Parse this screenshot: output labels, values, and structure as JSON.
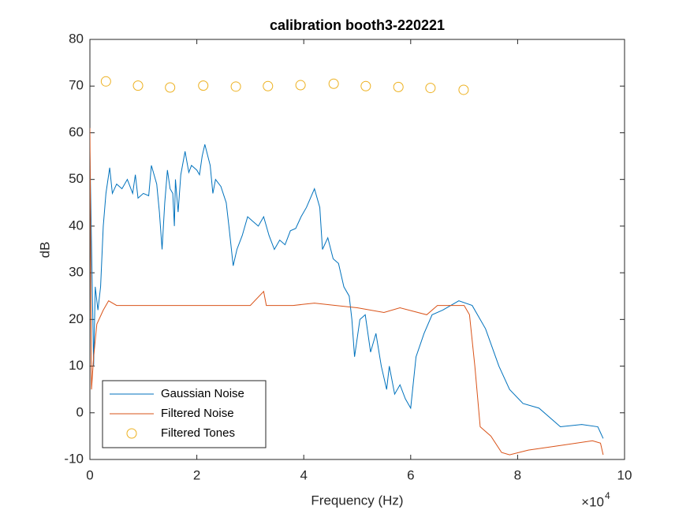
{
  "chart_data": {
    "type": "line",
    "title": "calibration booth3-220221",
    "xlabel": "Frequency (Hz)",
    "ylabel": "dB",
    "x_multiplier_base": "×10",
    "x_multiplier_exp": "4",
    "xlim": [
      0,
      100000
    ],
    "ylim": [
      -10,
      80
    ],
    "xticks": [
      {
        "value": 0,
        "label": "0"
      },
      {
        "value": 20000,
        "label": "2"
      },
      {
        "value": 40000,
        "label": "4"
      },
      {
        "value": 60000,
        "label": "6"
      },
      {
        "value": 80000,
        "label": "8"
      },
      {
        "value": 100000,
        "label": "10"
      }
    ],
    "yticks": [
      -10,
      0,
      10,
      20,
      30,
      40,
      50,
      60,
      70,
      80
    ],
    "legend_position": "lower-left",
    "series": [
      {
        "name": "Gaussian Noise",
        "color": "#0072BD",
        "marker": "line",
        "x": [
          0,
          700,
          1000,
          1500,
          2000,
          2500,
          3000,
          3700,
          4200,
          5000,
          6000,
          7000,
          8000,
          8500,
          9000,
          10000,
          11000,
          11500,
          12500,
          13000,
          13500,
          14000,
          14500,
          15000,
          15500,
          15800,
          16000,
          16500,
          17000,
          17800,
          18500,
          19000,
          20000,
          20500,
          21000,
          21500,
          22500,
          23000,
          23500,
          24500,
          25500,
          26000,
          26800,
          27500,
          28500,
          29500,
          30500,
          31500,
          32500,
          33500,
          34500,
          35500,
          36500,
          37500,
          38500,
          39500,
          40500,
          42000,
          43000,
          43500,
          44500,
          45500,
          46500,
          47500,
          48500,
          49000,
          49500,
          50500,
          51500,
          52500,
          53500,
          54500,
          55500,
          56000,
          57000,
          58000,
          59000,
          60000,
          61000,
          62500,
          64000,
          66000,
          69000,
          71500,
          74000,
          76500,
          78500,
          81000,
          84000,
          88000,
          92000,
          95000,
          96000
        ],
        "values": [
          56,
          10,
          27,
          22,
          27,
          40,
          47,
          52.5,
          47,
          49,
          48,
          50,
          47,
          51,
          46,
          47,
          46.5,
          53,
          49,
          43,
          35,
          45,
          52,
          48,
          47,
          40,
          50,
          43,
          51,
          56,
          51.5,
          53,
          52,
          51,
          55,
          57.5,
          53,
          47,
          50,
          48.5,
          45,
          40,
          31.5,
          35,
          38,
          42,
          41,
          40,
          42,
          38,
          35,
          37,
          36,
          39,
          39.5,
          42,
          44,
          48,
          44,
          35,
          37.5,
          33,
          32,
          27,
          25,
          20,
          12,
          20,
          21,
          13,
          17,
          10,
          5,
          10,
          4,
          6,
          3,
          1,
          12,
          17,
          21,
          22,
          24,
          23,
          18,
          10,
          5,
          2,
          1,
          -3,
          -2.5,
          -3,
          -5.5
        ]
      },
      {
        "name": "Filtered Noise",
        "color": "#D95319",
        "marker": "line",
        "x": [
          0,
          300,
          700,
          1300,
          2500,
          3500,
          5000,
          10000,
          15000,
          20000,
          25000,
          30000,
          32500,
          33000,
          38000,
          42000,
          46000,
          50000,
          55000,
          58000,
          63000,
          65000,
          70000,
          71000,
          72000,
          73000,
          75000,
          77000,
          78500,
          82000,
          88000,
          94000,
          95500,
          96000
        ],
        "values": [
          61,
          5,
          12,
          19,
          22,
          24,
          23,
          23,
          23,
          23,
          23,
          23,
          26,
          23,
          23,
          23.5,
          23,
          22.5,
          21.5,
          22.5,
          21,
          23,
          23,
          21,
          10,
          -3,
          -5,
          -8.5,
          -9,
          -8,
          -7,
          -6,
          -6.5,
          -9
        ]
      },
      {
        "name": "Filtered Tones",
        "color": "#EDB120",
        "marker": "circle",
        "x": [
          3000,
          9000,
          15000,
          21200,
          27300,
          33300,
          39400,
          45600,
          51600,
          57700,
          63700,
          69900
        ],
        "values": [
          71,
          70.1,
          69.7,
          70.1,
          69.9,
          70,
          70.2,
          70.5,
          70,
          69.8,
          69.6,
          69.2
        ]
      }
    ]
  }
}
